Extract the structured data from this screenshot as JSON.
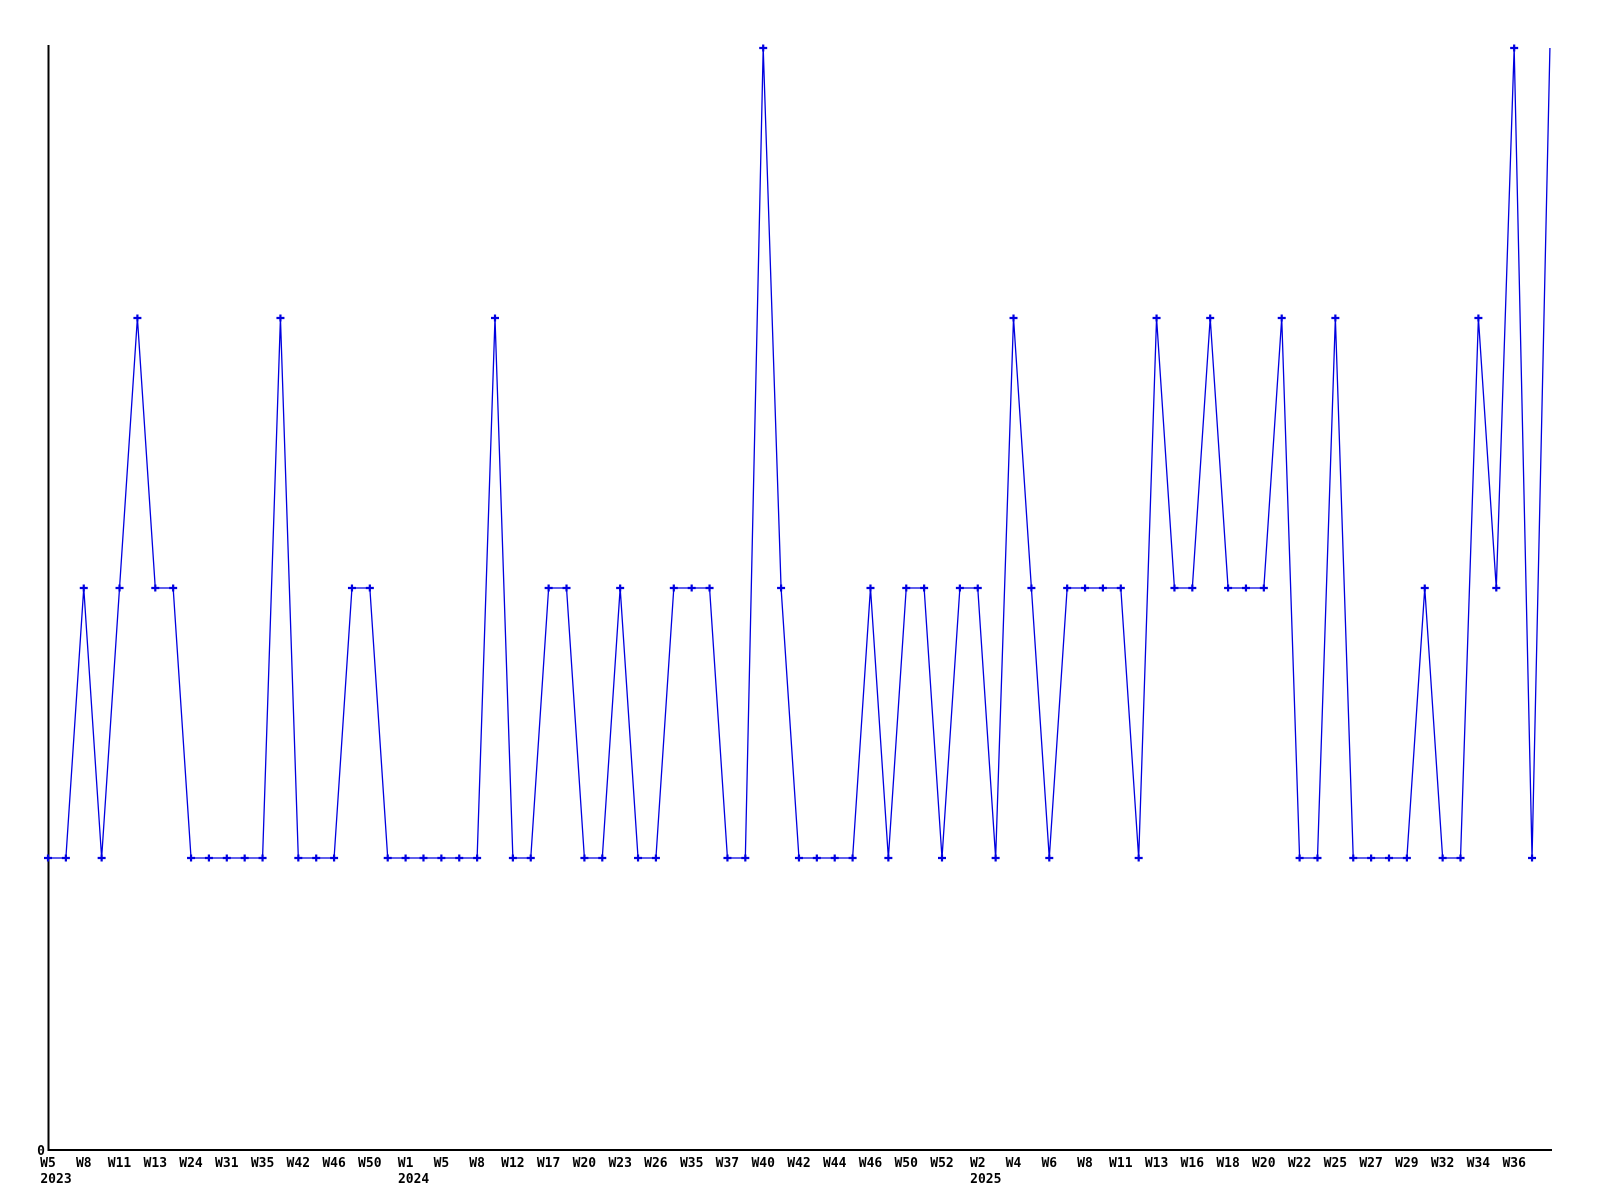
{
  "chart_data": {
    "type": "line",
    "title": "",
    "legend": null,
    "line_color": "#0000e0",
    "marker": "plus",
    "marker_color": "#0000e0",
    "axis_color": "#000000",
    "grid": false,
    "last_point_marker_visible": false,
    "y_axis": {
      "zero_label": "0",
      "ylim": [
        0,
        4
      ]
    },
    "values": [
      1,
      1,
      2,
      1,
      2,
      3,
      2,
      2,
      1,
      1,
      1,
      1,
      1,
      3,
      1,
      1,
      1,
      2,
      2,
      1,
      1,
      1,
      1,
      1,
      1,
      3,
      1,
      1,
      2,
      2,
      1,
      1,
      2,
      1,
      1,
      2,
      2,
      2,
      1,
      1,
      4,
      2,
      1,
      1,
      1,
      1,
      2,
      1,
      2,
      2,
      1,
      2,
      2,
      1,
      3,
      2,
      1,
      2,
      2,
      2,
      2,
      1,
      3,
      2,
      2,
      3,
      2,
      2,
      2,
      3,
      1,
      1,
      3,
      1,
      1,
      1,
      1,
      2,
      1,
      1,
      3,
      2,
      4,
      1,
      4
    ],
    "ticks": [
      {
        "index": 0,
        "label": "W5",
        "year": "2023"
      },
      {
        "index": 2,
        "label": "W8"
      },
      {
        "index": 4,
        "label": "W11"
      },
      {
        "index": 6,
        "label": "W13"
      },
      {
        "index": 8,
        "label": "W24"
      },
      {
        "index": 10,
        "label": "W31"
      },
      {
        "index": 12,
        "label": "W35"
      },
      {
        "index": 14,
        "label": "W42"
      },
      {
        "index": 16,
        "label": "W46"
      },
      {
        "index": 18,
        "label": "W50"
      },
      {
        "index": 20,
        "label": "W1",
        "year": "2024"
      },
      {
        "index": 22,
        "label": "W5"
      },
      {
        "index": 24,
        "label": "W8"
      },
      {
        "index": 26,
        "label": "W12"
      },
      {
        "index": 28,
        "label": "W17"
      },
      {
        "index": 30,
        "label": "W20"
      },
      {
        "index": 32,
        "label": "W23"
      },
      {
        "index": 34,
        "label": "W26"
      },
      {
        "index": 36,
        "label": "W35"
      },
      {
        "index": 38,
        "label": "W37"
      },
      {
        "index": 40,
        "label": "W40"
      },
      {
        "index": 42,
        "label": "W42"
      },
      {
        "index": 44,
        "label": "W44"
      },
      {
        "index": 46,
        "label": "W46"
      },
      {
        "index": 48,
        "label": "W50"
      },
      {
        "index": 50,
        "label": "W52"
      },
      {
        "index": 52,
        "label": "W2",
        "year": "2025"
      },
      {
        "index": 54,
        "label": "W4"
      },
      {
        "index": 56,
        "label": "W6"
      },
      {
        "index": 58,
        "label": "W8"
      },
      {
        "index": 60,
        "label": "W11"
      },
      {
        "index": 62,
        "label": "W13"
      },
      {
        "index": 64,
        "label": "W16"
      },
      {
        "index": 66,
        "label": "W18"
      },
      {
        "index": 68,
        "label": "W20"
      },
      {
        "index": 70,
        "label": "W22"
      },
      {
        "index": 72,
        "label": "W25"
      },
      {
        "index": 74,
        "label": "W27"
      },
      {
        "index": 76,
        "label": "W29"
      },
      {
        "index": 78,
        "label": "W32"
      },
      {
        "index": 80,
        "label": "W34"
      },
      {
        "index": 82,
        "label": "W36"
      }
    ]
  }
}
